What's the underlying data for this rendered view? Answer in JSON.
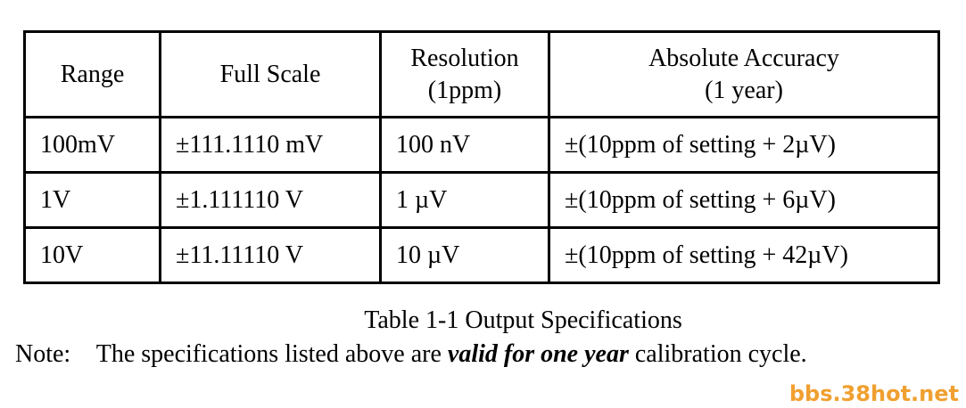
{
  "table": {
    "header": [
      [
        "Range"
      ],
      [
        "Full Scale"
      ],
      [
        "Resolution",
        "(1ppm)"
      ],
      [
        "Absolute Accuracy",
        "(1 year)"
      ]
    ],
    "rows": [
      [
        "100mV",
        "±111.1110 mV",
        "100 nV",
        "±(10ppm of setting + 2µV)"
      ],
      [
        "1V",
        "±1.111110 V",
        "1 µV",
        "±(10ppm of setting + 6µV)"
      ],
      [
        "10V",
        "±11.11110 V",
        "10 µV",
        "±(10ppm of setting + 42µV)"
      ]
    ]
  },
  "caption": "Table 1-1 Output Specifications",
  "note": {
    "label": "Note:",
    "text_before": "The specifications listed above are",
    "emphasis": "valid for one year",
    "text_after": "calibration cycle."
  },
  "watermark": "bbs.38hot.net"
}
